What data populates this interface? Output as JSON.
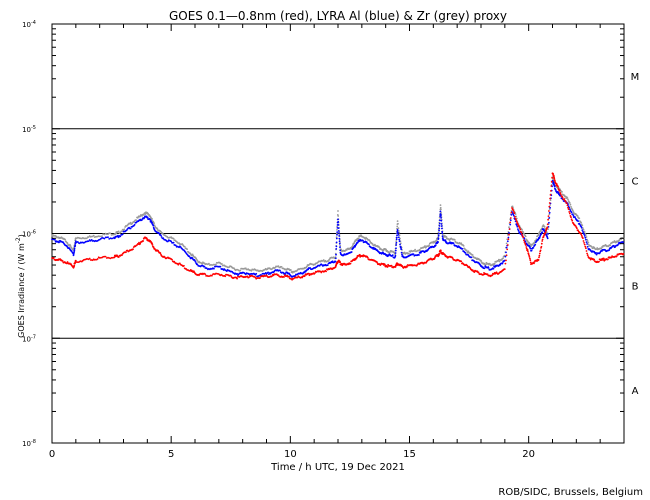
{
  "chart_data": {
    "type": "scatter",
    "title": "GOES 0.1—0.8nm (red), LYRA Al (blue) & Zr (grey) proxy",
    "xlabel": "Time / h UTC, 19 Dec 2021",
    "ylabel_main": "GOES Irradiance / (W m",
    "ylabel_sup": "-2",
    "ylabel_close": ")",
    "xlim": [
      0,
      24
    ],
    "ylim": [
      1e-08,
      0.0001
    ],
    "yscale": "log",
    "x_ticks": [
      0,
      5,
      10,
      15,
      20
    ],
    "y_ticks": [
      {
        "value": 1e-08,
        "base": "10",
        "exp": "-8"
      },
      {
        "value": 1e-07,
        "base": "10",
        "exp": "-7"
      },
      {
        "value": 1e-06,
        "base": "10",
        "exp": "-6"
      },
      {
        "value": 1e-05,
        "base": "10",
        "exp": "-5"
      },
      {
        "value": 0.0001,
        "base": "10",
        "exp": "-4"
      }
    ],
    "class_lines": [
      1e-07,
      1e-06,
      1e-05
    ],
    "flare_classes": [
      {
        "label": "A",
        "value": 3.2e-08
      },
      {
        "label": "B",
        "value": 3.2e-07
      },
      {
        "label": "C",
        "value": 3.2e-06
      },
      {
        "label": "M",
        "value": 3.2e-05
      }
    ],
    "series": [
      {
        "color": "#9a9a9a",
        "x": [
          0.0,
          0.3,
          0.6,
          0.9,
          1.0,
          1.5,
          2.0,
          2.6,
          2.8,
          3.2,
          3.6,
          3.9,
          4.1,
          4.3,
          4.6,
          5.0,
          5.4,
          5.8,
          6.1,
          6.5,
          7.0,
          7.4,
          7.8,
          8.2,
          8.6,
          9.0,
          9.4,
          9.8,
          10.1,
          10.5,
          10.8,
          11.2,
          11.6,
          11.9,
          12.0,
          12.1,
          12.3,
          12.6,
          12.8,
          13.0,
          13.3,
          13.6,
          13.9,
          14.1,
          14.4,
          14.5,
          14.7,
          15.0,
          15.4,
          15.7,
          16.0,
          16.2,
          16.3,
          16.4,
          16.6,
          16.9,
          17.2,
          17.5,
          17.8,
          18.1,
          18.4,
          18.7,
          19.0,
          19.3,
          19.6,
          19.9,
          20.1,
          20.4,
          20.6,
          20.8,
          21.0,
          21.1,
          21.3,
          21.6,
          21.9,
          22.2,
          22.5,
          22.8,
          23.1,
          23.4,
          23.7,
          24.0
        ],
        "y": [
          9.5e-07,
          9.2e-07,
          8.5e-07,
          6.8e-07,
          9e-07,
          9.2e-07,
          9.6e-07,
          1e-06,
          1.02e-06,
          1.2e-06,
          1.4e-06,
          1.58e-06,
          1.5e-06,
          1.2e-06,
          1e-06,
          9e-07,
          8e-07,
          6.5e-07,
          5.5e-07,
          5e-07,
          5.2e-07,
          4.8e-07,
          4.5e-07,
          4.6e-07,
          4.4e-07,
          4.5e-07,
          4.8e-07,
          4.6e-07,
          4.3e-07,
          4.6e-07,
          5e-07,
          5.3e-07,
          5.6e-07,
          6e-07,
          1.6e-06,
          7e-07,
          6.8e-07,
          7.5e-07,
          9e-07,
          9.5e-07,
          8.5e-07,
          7.5e-07,
          7e-07,
          6.8e-07,
          6.5e-07,
          1.3e-06,
          6.4e-07,
          6.6e-07,
          7e-07,
          7.5e-07,
          8.2e-07,
          9e-07,
          1.85e-06,
          9.5e-07,
          9e-07,
          8.5e-07,
          7.8e-07,
          6.5e-07,
          5.8e-07,
          5.2e-07,
          5e-07,
          5.4e-07,
          6e-07,
          1.85e-06,
          1.2e-06,
          9e-07,
          7.5e-07,
          9.5e-07,
          1.2e-06,
          1e-06,
          3.5e-06,
          3e-06,
          2.6e-06,
          2.2e-06,
          1.6e-06,
          1.3e-06,
          8e-07,
          7e-07,
          7.4e-07,
          7.8e-07,
          8.5e-07,
          9e-07
        ]
      },
      {
        "color": "#0000ff",
        "x": [
          0.0,
          0.3,
          0.6,
          0.9,
          1.0,
          1.5,
          2.0,
          2.6,
          2.8,
          3.2,
          3.6,
          3.9,
          4.1,
          4.3,
          4.6,
          5.0,
          5.4,
          5.8,
          6.1,
          6.5,
          7.0,
          7.4,
          7.8,
          8.2,
          8.6,
          9.0,
          9.4,
          9.8,
          10.1,
          10.5,
          10.8,
          11.2,
          11.6,
          11.9,
          12.0,
          12.1,
          12.3,
          12.6,
          12.8,
          13.0,
          13.3,
          13.6,
          13.9,
          14.1,
          14.4,
          14.5,
          14.7,
          15.0,
          15.4,
          15.7,
          16.0,
          16.2,
          16.3,
          16.4,
          16.6,
          16.9,
          17.2,
          17.5,
          17.8,
          18.1,
          18.4,
          18.7,
          19.0,
          19.3,
          19.6,
          19.9,
          20.1,
          20.4,
          20.6,
          20.8,
          21.0,
          21.1,
          21.3,
          21.6,
          21.9,
          22.2,
          22.5,
          22.8,
          23.1,
          23.4,
          23.7,
          24.0
        ],
        "y": [
          8.7e-07,
          8.4e-07,
          7.8e-07,
          6.3e-07,
          8.2e-07,
          8.4e-07,
          8.8e-07,
          9.2e-07,
          9.4e-07,
          1.1e-06,
          1.28e-06,
          1.45e-06,
          1.38e-06,
          1.1e-06,
          9.2e-07,
          8.2e-07,
          7.3e-07,
          6e-07,
          5.1e-07,
          4.6e-07,
          4.8e-07,
          4.4e-07,
          4.1e-07,
          4.2e-07,
          4e-07,
          4.1e-07,
          4.4e-07,
          4.2e-07,
          3.9e-07,
          4.2e-07,
          4.6e-07,
          4.9e-07,
          5.1e-07,
          5.5e-07,
          1.4e-06,
          6.4e-07,
          6.2e-07,
          6.9e-07,
          8.2e-07,
          8.7e-07,
          7.8e-07,
          6.9e-07,
          6.4e-07,
          6.2e-07,
          6e-07,
          1.1e-06,
          5.9e-07,
          6.1e-07,
          6.4e-07,
          6.9e-07,
          7.5e-07,
          8.2e-07,
          1.6e-06,
          8.7e-07,
          8.2e-07,
          7.8e-07,
          7.1e-07,
          6e-07,
          5.3e-07,
          4.8e-07,
          4.6e-07,
          4.9e-07,
          5.5e-07,
          1.6e-06,
          1.05e-06,
          8.2e-07,
          6.9e-07,
          8.7e-07,
          1.1e-06,
          9.2e-07,
          3.2e-06,
          2.7e-06,
          2.3e-06,
          1.95e-06,
          1.45e-06,
          1.18e-06,
          7.3e-07,
          6.4e-07,
          6.8e-07,
          7.1e-07,
          7.8e-07,
          8.2e-07
        ]
      },
      {
        "color": "#ff0000",
        "x": [
          0.0,
          0.3,
          0.6,
          0.9,
          1.0,
          1.5,
          2.0,
          2.6,
          2.8,
          3.2,
          3.6,
          3.9,
          4.1,
          4.3,
          4.6,
          5.0,
          5.4,
          5.8,
          6.1,
          6.5,
          7.0,
          7.4,
          7.8,
          8.2,
          8.6,
          9.0,
          9.4,
          9.8,
          10.1,
          10.5,
          10.8,
          11.2,
          11.6,
          11.9,
          12.0,
          12.1,
          12.3,
          12.6,
          12.8,
          13.0,
          13.3,
          13.6,
          13.9,
          14.1,
          14.4,
          14.5,
          14.7,
          15.0,
          15.4,
          15.7,
          16.0,
          16.2,
          16.3,
          16.4,
          16.6,
          16.9,
          17.2,
          17.5,
          17.8,
          18.1,
          18.4,
          18.7,
          19.0,
          19.3,
          19.6,
          19.9,
          20.1,
          20.4,
          20.6,
          20.8,
          21.0,
          21.1,
          21.3,
          21.6,
          21.9,
          22.2,
          22.5,
          22.8,
          23.1,
          23.4,
          23.7,
          24.0
        ],
        "y": [
          5.8e-07,
          5.6e-07,
          5.3e-07,
          4.8e-07,
          5.4e-07,
          5.6e-07,
          5.8e-07,
          6e-07,
          6.1e-07,
          6.8e-07,
          7.8e-07,
          9e-07,
          8.6e-07,
          7.2e-07,
          6.2e-07,
          5.6e-07,
          5e-07,
          4.4e-07,
          4.1e-07,
          4e-07,
          4.1e-07,
          3.9e-07,
          3.8e-07,
          3.9e-07,
          3.8e-07,
          3.9e-07,
          4e-07,
          3.9e-07,
          3.7e-07,
          3.9e-07,
          4.1e-07,
          4.3e-07,
          4.5e-07,
          4.8e-07,
          5.5e-07,
          5.2e-07,
          5e-07,
          5.4e-07,
          6e-07,
          6.2e-07,
          5.8e-07,
          5.3e-07,
          5e-07,
          4.9e-07,
          4.8e-07,
          5.2e-07,
          4.8e-07,
          4.9e-07,
          5.1e-07,
          5.4e-07,
          5.8e-07,
          6.2e-07,
          6.8e-07,
          6.4e-07,
          6e-07,
          5.7e-07,
          5.3e-07,
          4.7e-07,
          4.3e-07,
          4.1e-07,
          4e-07,
          4.2e-07,
          4.5e-07,
          1.75e-06,
          1.15e-06,
          7.5e-07,
          5.2e-07,
          5.5e-07,
          9e-07,
          1.2e-06,
          3.8e-06,
          3.2e-06,
          2.5e-06,
          1.9e-06,
          1.2e-06,
          1e-06,
          6e-07,
          5.4e-07,
          5.6e-07,
          5.8e-07,
          6.2e-07,
          6.5e-07
        ]
      }
    ]
  },
  "footer": {
    "credit": "ROB/SIDC, Brussels, Belgium"
  }
}
